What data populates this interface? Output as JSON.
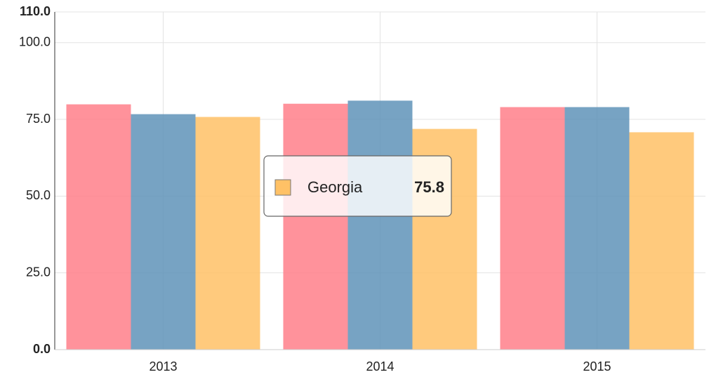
{
  "chart_data": {
    "type": "bar",
    "categories": [
      "2013",
      "2014",
      "2015"
    ],
    "series": [
      {
        "color": "#ff7f89",
        "values": [
          79.9,
          80.1,
          79.0
        ]
      },
      {
        "color": "#5f93b9",
        "values": [
          76.7,
          81.1,
          79.0
        ]
      },
      {
        "name": "Georgia",
        "color": "#ffc166",
        "values": [
          75.8,
          71.9,
          70.8
        ]
      }
    ],
    "ylim": [
      0,
      110
    ],
    "yticks": [
      {
        "value": 0,
        "label": "0.0"
      },
      {
        "value": 25,
        "label": "25.0"
      },
      {
        "value": 50,
        "label": "50.0"
      },
      {
        "value": 75,
        "label": "75.0"
      },
      {
        "value": 100,
        "label": "100.0"
      },
      {
        "value": 110,
        "label": "110.0"
      }
    ],
    "grid": true
  }
}
